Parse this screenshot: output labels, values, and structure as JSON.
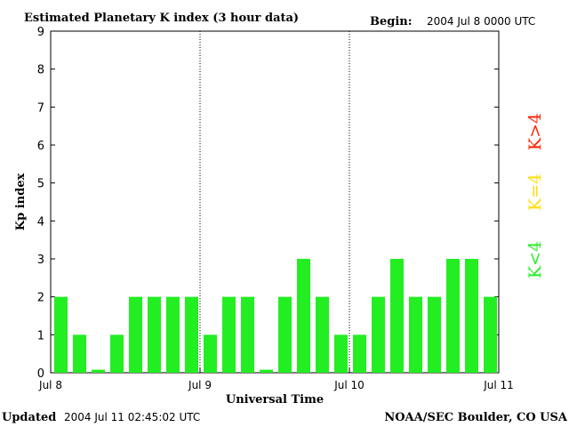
{
  "header": {
    "title": "Estimated Planetary K index (3 hour data)",
    "begin_label": "Begin:",
    "begin_value": "2004 Jul 8 0000 UTC"
  },
  "footer": {
    "updated_label": "Updated",
    "updated_value": "2004 Jul 11 02:45:02 UTC",
    "source": "NOAA/SEC Boulder, CO USA"
  },
  "legend": {
    "items": [
      {
        "label": "K>4",
        "color": "#ff2200"
      },
      {
        "label": "K=4",
        "color": "#ffdd00"
      },
      {
        "label": "K<4",
        "color": "#22ee22"
      }
    ]
  },
  "chart_data": {
    "type": "bar",
    "title": "Estimated Planetary K index (3 hour data)",
    "xlabel": "Universal Time",
    "ylabel": "Kp index",
    "ylim": [
      0,
      9
    ],
    "yticks": [
      0,
      1,
      2,
      3,
      4,
      5,
      6,
      7,
      8,
      9
    ],
    "xtick_labels": [
      "Jul 8",
      "Jul 9",
      "Jul 10",
      "Jul 11"
    ],
    "day_dividers": [
      "Jul 9",
      "Jul 10"
    ],
    "bar_color": "#22ee22",
    "categories": [
      "Jul 8 00",
      "Jul 8 03",
      "Jul 8 06",
      "Jul 8 09",
      "Jul 8 12",
      "Jul 8 15",
      "Jul 8 18",
      "Jul 8 21",
      "Jul 9 00",
      "Jul 9 03",
      "Jul 9 06",
      "Jul 9 09",
      "Jul 9 12",
      "Jul 9 15",
      "Jul 9 18",
      "Jul 9 21",
      "Jul 10 00",
      "Jul 10 03",
      "Jul 10 06",
      "Jul 10 09",
      "Jul 10 12",
      "Jul 10 15",
      "Jul 10 18",
      "Jul 10 21"
    ],
    "values": [
      2,
      1,
      0,
      1,
      2,
      2,
      2,
      2,
      1,
      2,
      2,
      0,
      2,
      3,
      2,
      1,
      1,
      2,
      3,
      2,
      2,
      3,
      3,
      2
    ],
    "grid": false
  }
}
